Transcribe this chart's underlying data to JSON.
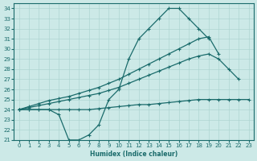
{
  "xlabel": "Humidex (Indice chaleur)",
  "bg_color": "#cce9e7",
  "grid_color": "#aed5d2",
  "line_color": "#1a6b6b",
  "ylim": [
    21,
    34.5
  ],
  "xlim": [
    -0.5,
    23.5
  ],
  "yticks": [
    21,
    22,
    23,
    24,
    25,
    26,
    27,
    28,
    29,
    30,
    31,
    32,
    33,
    34
  ],
  "xticks": [
    0,
    1,
    2,
    3,
    4,
    5,
    6,
    7,
    8,
    9,
    10,
    11,
    12,
    13,
    14,
    15,
    16,
    17,
    18,
    19,
    20,
    21,
    22,
    23
  ],
  "line1": [
    24.0,
    24.0,
    24.0,
    24.0,
    23.5,
    21.0,
    21.0,
    21.5,
    22.5,
    25.0,
    26.0,
    29.0,
    31.0,
    32.0,
    33.0,
    34.0,
    34.0,
    33.0,
    32.0,
    31.0,
    null,
    null,
    null,
    null
  ],
  "line2": [
    24.0,
    24.3,
    24.6,
    24.9,
    25.1,
    25.3,
    25.6,
    25.9,
    26.2,
    26.6,
    27.0,
    27.5,
    28.0,
    28.5,
    29.0,
    29.5,
    30.0,
    30.5,
    31.0,
    31.2,
    29.5,
    null,
    null,
    null
  ],
  "line3": [
    24.0,
    24.2,
    24.4,
    24.6,
    24.8,
    25.0,
    25.2,
    25.4,
    25.6,
    25.9,
    26.2,
    26.6,
    27.0,
    27.4,
    27.8,
    28.2,
    28.6,
    29.0,
    29.3,
    29.5,
    29.0,
    28.0,
    27.0,
    null
  ],
  "line4": [
    24.0,
    24.0,
    24.0,
    24.0,
    24.0,
    24.0,
    24.0,
    24.0,
    24.1,
    24.2,
    24.3,
    24.4,
    24.5,
    24.5,
    24.6,
    24.7,
    24.8,
    24.9,
    25.0,
    25.0,
    25.0,
    25.0,
    25.0,
    25.0
  ]
}
